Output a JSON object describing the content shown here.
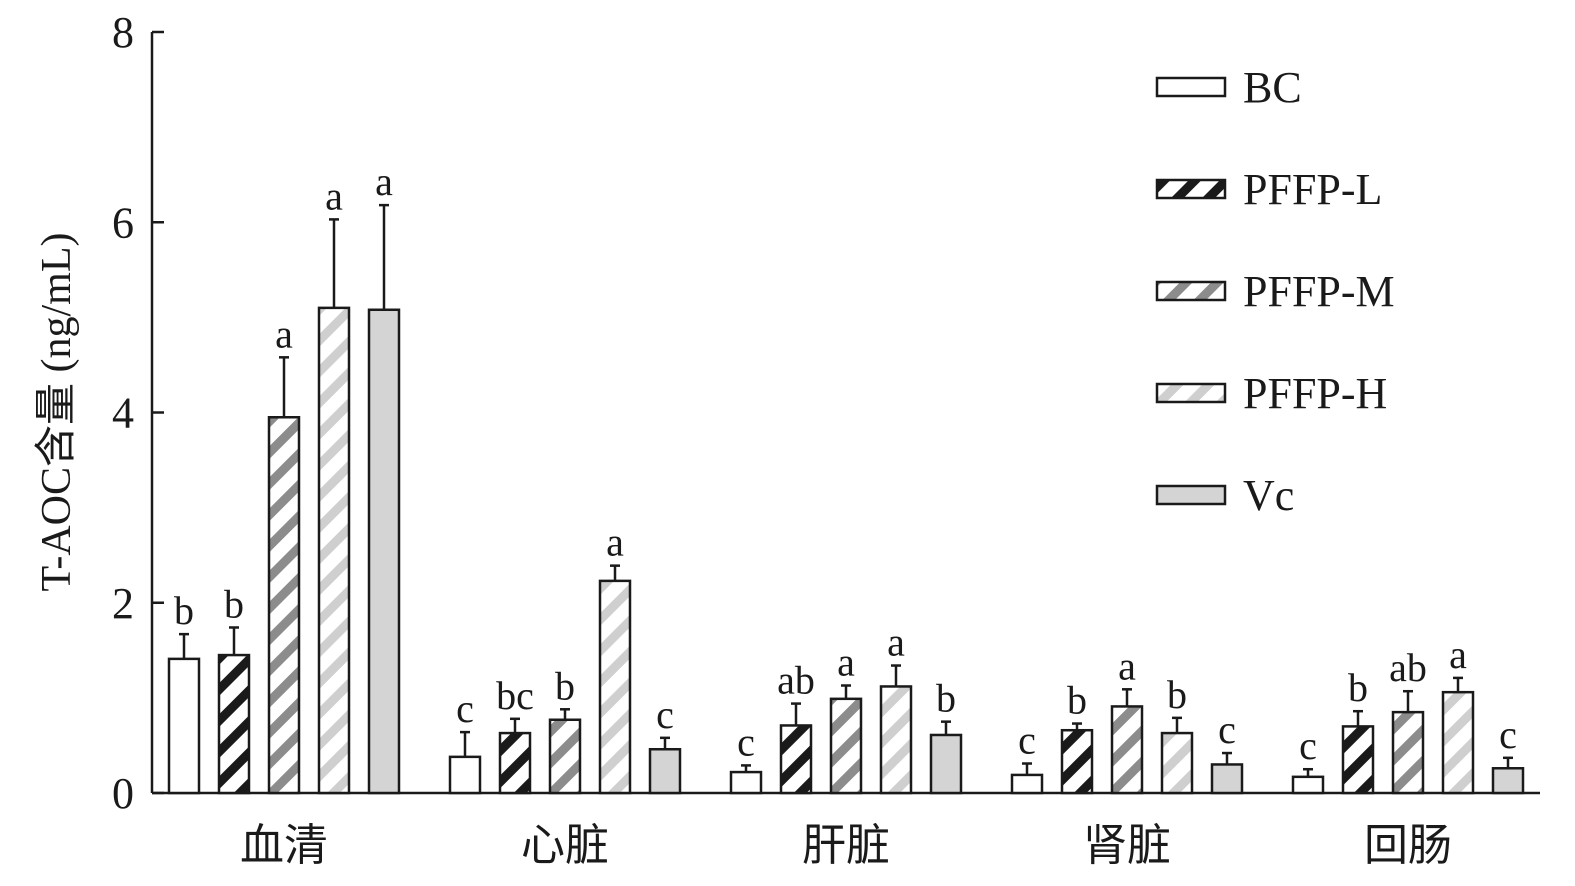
{
  "chart_data": {
    "type": "bar",
    "ylabel": "T-AOC含量 (ng/mL)",
    "xlabel": "",
    "ylim": [
      0,
      8
    ],
    "yticks": [
      "0",
      "2",
      "4",
      "6",
      "8"
    ],
    "grid": false,
    "legend_position": "top-right",
    "categories": [
      "血清",
      "心脏",
      "肝脏",
      "肾脏",
      "回肠"
    ],
    "series": [
      {
        "name": "BC",
        "pattern": "none",
        "fill": "#ffffff",
        "stripe": "",
        "values": [
          1.41,
          0.38,
          0.22,
          0.19,
          0.17
        ],
        "errors": [
          0.26,
          0.26,
          0.07,
          0.12,
          0.08
        ],
        "labels": [
          "b",
          "c",
          "c",
          "c",
          "c"
        ]
      },
      {
        "name": "PFFP-L",
        "pattern": "hatch",
        "fill": "#ffffff",
        "stripe": "#1a1a1a",
        "values": [
          1.45,
          0.63,
          0.71,
          0.66,
          0.7
        ],
        "errors": [
          0.29,
          0.15,
          0.23,
          0.07,
          0.16
        ],
        "labels": [
          "b",
          "bc",
          "ab",
          "b",
          "b"
        ]
      },
      {
        "name": "PFFP-M",
        "pattern": "hatch",
        "fill": "#ffffff",
        "stripe": "#8c8c8c",
        "values": [
          3.95,
          0.77,
          0.99,
          0.91,
          0.85
        ],
        "errors": [
          0.63,
          0.11,
          0.14,
          0.18,
          0.22
        ],
        "labels": [
          "a",
          "b",
          "a",
          "a",
          "ab"
        ]
      },
      {
        "name": "PFFP-H",
        "pattern": "hatch",
        "fill": "#ffffff",
        "stripe": "#cfcfcf",
        "values": [
          5.1,
          2.23,
          1.12,
          0.63,
          1.06
        ],
        "errors": [
          0.93,
          0.16,
          0.22,
          0.16,
          0.15
        ],
        "labels": [
          "a",
          "a",
          "a",
          "b",
          "a"
        ]
      },
      {
        "name": "Vc",
        "pattern": "solid",
        "fill": "#d4d4d4",
        "stripe": "",
        "values": [
          5.08,
          0.46,
          0.61,
          0.3,
          0.26
        ],
        "errors": [
          1.1,
          0.12,
          0.14,
          0.12,
          0.11
        ],
        "labels": [
          "a",
          "c",
          "b",
          "c",
          "c"
        ]
      }
    ]
  }
}
